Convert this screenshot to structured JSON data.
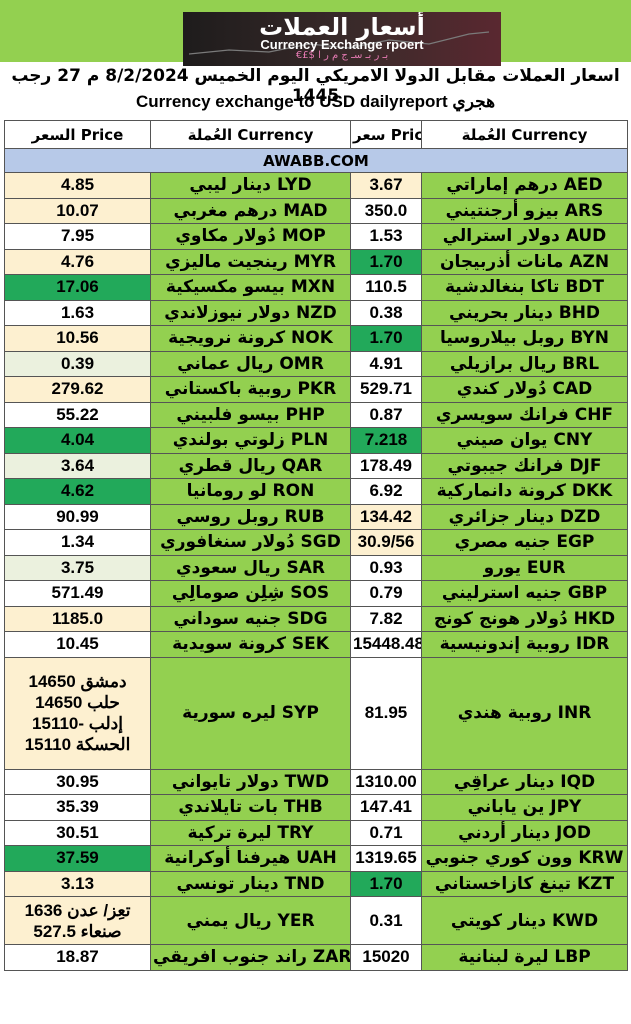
{
  "logo": {
    "title_ar": "أسعار العملات",
    "title_en": "Currency Exchange rpoert",
    "subtitle": "€£$ بـ ر بـ سـ ج م ر ا"
  },
  "heading": {
    "ar": "اسعار العملات مقابل الدولا الامريكي اليوم الخميس 8/2/2024 م 27 رجب 1445",
    "en": "Currency exchange to USD dailyreport      هجري"
  },
  "header_row": {
    "price_left": "السعر Price",
    "currency_left": "العُملة Currency",
    "price_right": "سعر Price",
    "currency_right": "العُملة Currency"
  },
  "site": "AWABB.COM",
  "rows": [
    {
      "lp": "4.85",
      "lc": "دينار ليبي  LYD",
      "rp": "3.67",
      "rc": "درهم إماراتي  AED",
      "lbg": "cream",
      "rbg": "cream"
    },
    {
      "lp": "10.07",
      "lc": "درهم مغربي  MAD",
      "rp": "350.0",
      "rc": "بيزو أرجنتيني  ARS",
      "lbg": "cream",
      "rbg": "white"
    },
    {
      "lp": "7.95",
      "lc": "دُولار مكاوي  MOP",
      "rp": "1.53",
      "rc": "دولار استرالي  AUD",
      "lbg": "white",
      "rbg": "white"
    },
    {
      "lp": "4.76",
      "lc": "رينجيت ماليزي  MYR",
      "rp": "1.70",
      "rc": "مانات أذربيجان  AZN",
      "lbg": "cream",
      "rbg": "green"
    },
    {
      "lp": "17.06",
      "lc": "بيسو مكسيكية  MXN",
      "rp": "110.5",
      "rc": "تاكا بنغالدشية  BDT",
      "lbg": "green",
      "rbg": "white"
    },
    {
      "lp": "1.63",
      "lc": "دولار نيوزلاندي  NZD",
      "rp": "0.38",
      "rc": "دينار بحريني  BHD",
      "lbg": "white",
      "rbg": "white"
    },
    {
      "lp": "10.56",
      "lc": "كرونة نرويجية  NOK",
      "rp": "1.70",
      "rc": "روبل بيلاروسيا  BYN",
      "lbg": "cream",
      "rbg": "green"
    },
    {
      "lp": "0.39",
      "lc": "ريال عماني  OMR",
      "rp": "4.91",
      "rc": "ريال برازيلي  BRL",
      "lbg": "lgreen",
      "rbg": "white"
    },
    {
      "lp": "279.62",
      "lc": "روبية باكستاني  PKR",
      "rp": "529.71",
      "rc": "دُولار كندي  CAD",
      "lbg": "cream",
      "rbg": "white"
    },
    {
      "lp": "55.22",
      "lc": "بيسو فلبيني  PHP",
      "rp": "0.87",
      "rc": "فرانك سويسري  CHF",
      "lbg": "white",
      "rbg": "white"
    },
    {
      "lp": "4.04",
      "lc": "زلوتي  بولندي  PLN",
      "rp": "7.218",
      "rc": "يوان صيني  CNY",
      "lbg": "green",
      "rbg": "green"
    },
    {
      "lp": "3.64",
      "lc": "ريال قطري  QAR",
      "rp": "178.49",
      "rc": "فرانك جيبوتي  DJF",
      "lbg": "lgreen",
      "rbg": "white"
    },
    {
      "lp": "4.62",
      "lc": "لو رومانيا  RON",
      "rp": "6.92",
      "rc": "كرونة دانماركية  DKK",
      "lbg": "green",
      "rbg": "white"
    },
    {
      "lp": "90.99",
      "lc": "روبل روسي  RUB",
      "rp": "134.42",
      "rc": "دينار جزائري  DZD",
      "lbg": "white",
      "rbg": "cream"
    },
    {
      "lp": "1.34",
      "lc": "دُولار سنغافوري  SGD",
      "rp": "30.9/56",
      "rc": "جنيه مصري  EGP",
      "lbg": "white",
      "rbg": "cream"
    },
    {
      "lp": "3.75",
      "lc": "ريال سعودي  SAR",
      "rp": "0.93",
      "rc": "يورو  EUR",
      "lbg": "lgreen",
      "rbg": "white"
    },
    {
      "lp": "571.49",
      "lc": "شِلِن صومالِي  SOS",
      "rp": "0.79",
      "rc": "جنيه استرليني  GBP",
      "lbg": "white",
      "rbg": "white"
    },
    {
      "lp": "1185.0",
      "lc": "جنيه سوداني  SDG",
      "rp": "7.82",
      "rc": "دُولار هونج كونج  HKD",
      "lbg": "cream",
      "rbg": "white"
    },
    {
      "lp": "10.45",
      "lc": "كرونة سويدية  SEK",
      "rp": "15448.48",
      "rc": "روبية إندونيسية  IDR",
      "lbg": "white",
      "rbg": "white"
    }
  ],
  "syp_row": {
    "lp_lines": [
      "دمشق 14650",
      "حلب 14650",
      "إدلب -15110",
      "الحسكة 15110"
    ],
    "lc": "ليره سورية  SYP",
    "rp": "81.95",
    "rc": "روبية هندي  INR"
  },
  "rows2": [
    {
      "lp": "30.95",
      "lc": "دولار تايواني  TWD",
      "rp": "1310.00",
      "rc": "دينار عراقِي  IQD",
      "lbg": "white",
      "rbg": "white"
    },
    {
      "lp": "35.39",
      "lc": "بات تايلاندي  THB",
      "rp": "147.41",
      "rc": "ين ياباني  JPY",
      "lbg": "white",
      "rbg": "white"
    },
    {
      "lp": "30.51",
      "lc": "ليرة تركية  TRY",
      "rp": "0.71",
      "rc": "دينار أردني  JOD",
      "lbg": "white",
      "rbg": "white"
    },
    {
      "lp": "37.59",
      "lc": "هيرفنا أوكرانية  UAH",
      "rp": "1319.65",
      "rc": "وون كوري جنوبي  KRW",
      "lbg": "green",
      "rbg": "white"
    },
    {
      "lp": "3.13",
      "lc": "دينار تونسي  TND",
      "rp": "1.70",
      "rc": "تينغ كازاخستاني  KZT",
      "lbg": "cream",
      "rbg": "green"
    }
  ],
  "yer_row": {
    "lp_lines": [
      "تعِز/ عدن 1636",
      "صنعاء 527.5"
    ],
    "lc": "ريال يمني  YER",
    "rp": "0.31",
    "rc": "دينار كويتي  KWD"
  },
  "last_row": {
    "lp": "18.87",
    "lc": "راند جنوب افريقي  ZAR",
    "rp": "15020",
    "rc": "ليرة لبنانية  LBP",
    "lbg": "white",
    "rbg": "white"
  },
  "colors": {
    "green_band": "#93d050",
    "site_band": "#b7c9e8",
    "cream": "#fdf0d0",
    "light_green": "#ebf1de",
    "dark_green": "#22a95a"
  }
}
